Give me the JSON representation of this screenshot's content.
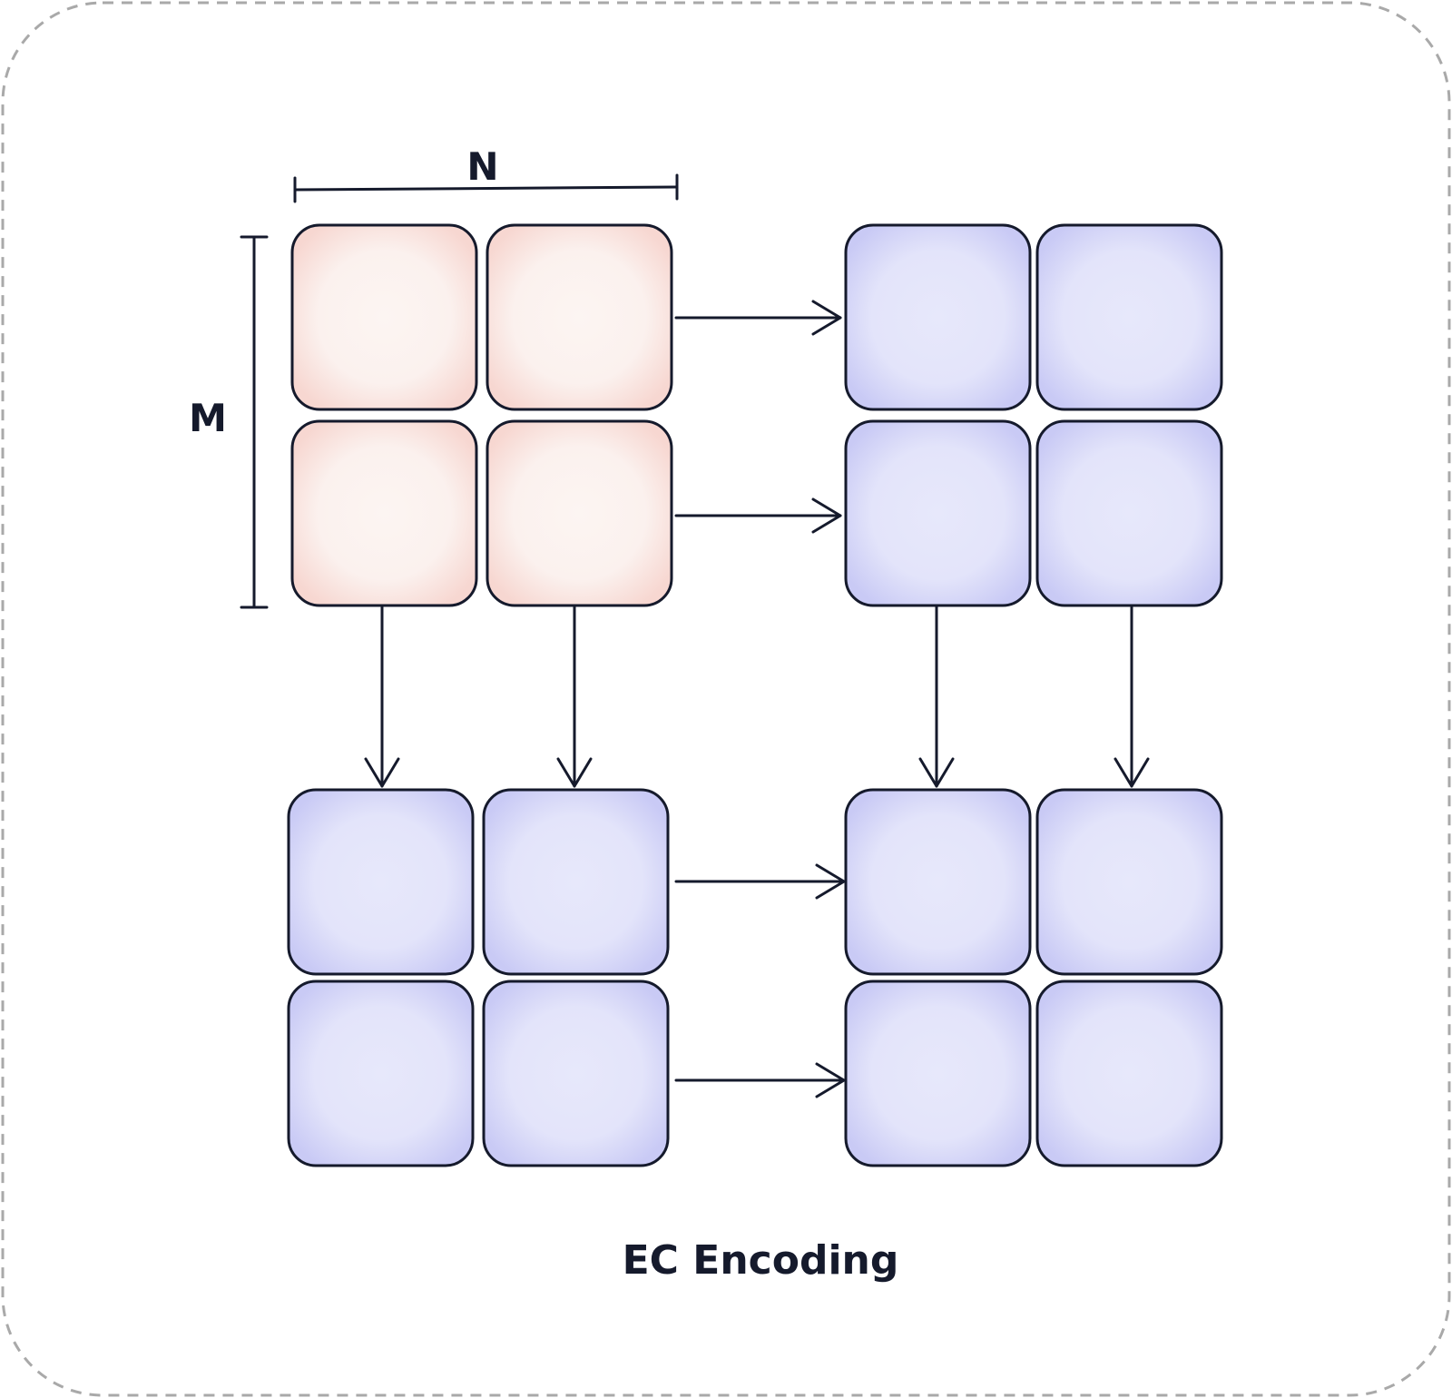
{
  "dimension_labels": {
    "n": "N",
    "m": "M"
  },
  "caption": "EC Encoding",
  "colors": {
    "data_cell_edge": "#f7d7d1",
    "data_cell_center": "#fcf5f2",
    "parity_cell_edge": "#c9caf5",
    "parity_cell_center": "#e7e8fb",
    "stroke": "#151a2c",
    "border": "#a9a9a9"
  },
  "blocks": [
    {
      "kind": "data",
      "rows": 2,
      "cols": 2
    },
    {
      "kind": "parity",
      "rows": 2,
      "cols": 2
    },
    {
      "kind": "parity",
      "rows": 2,
      "cols": 2
    },
    {
      "kind": "parity",
      "rows": 2,
      "cols": 2
    }
  ]
}
